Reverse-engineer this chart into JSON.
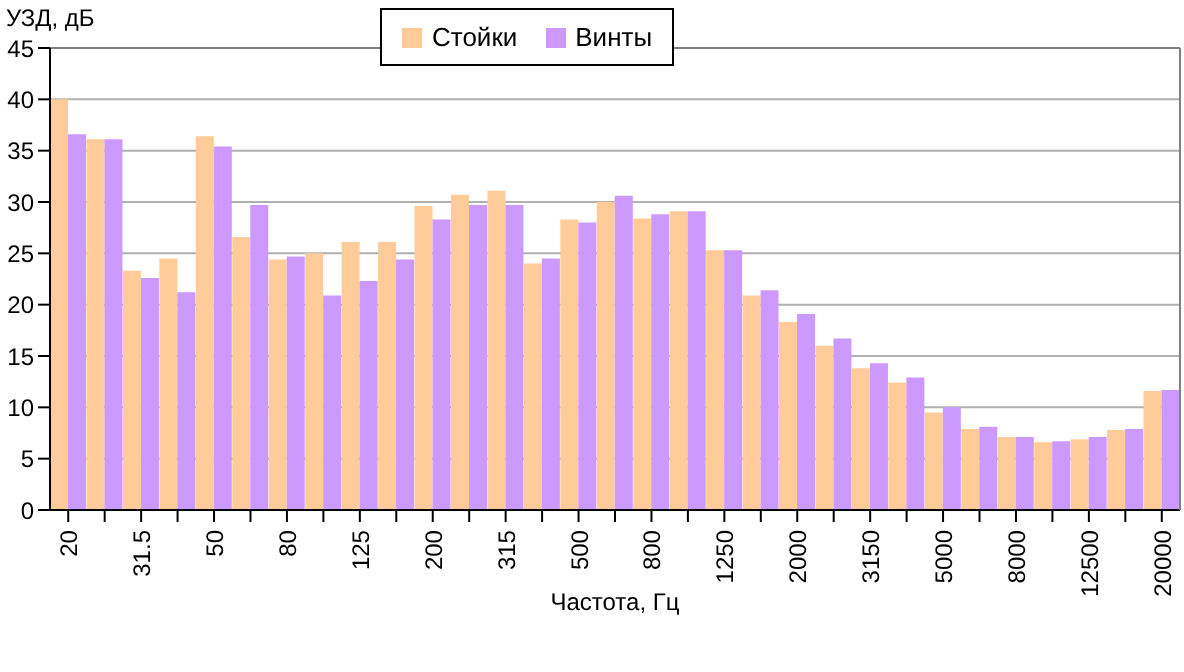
{
  "chart_data": {
    "type": "bar",
    "xlabel": "Частота, Гц",
    "ylabel": "УЗД, дБ",
    "categories": [
      "20",
      null,
      "31.5",
      null,
      "50",
      null,
      "80",
      null,
      "125",
      null,
      "200",
      null,
      "315",
      null,
      "500",
      null,
      "800",
      null,
      "1250",
      null,
      "2000",
      null,
      "3150",
      null,
      "5000",
      null,
      "8000",
      null,
      "12500",
      null,
      "20000"
    ],
    "series": [
      {
        "name": "Стойки",
        "color": "#ffcc99",
        "values": [
          40,
          36.1,
          23.3,
          24.5,
          36.4,
          26.6,
          24.4,
          25.0,
          26.1,
          26.1,
          29.6,
          30.7,
          31.1,
          24.0,
          28.3,
          30.0,
          28.4,
          29.1,
          25.3,
          20.9,
          18.3,
          16.0,
          13.8,
          12.4,
          9.5,
          7.9,
          7.1,
          6.6,
          6.9,
          7.8,
          11.6
        ]
      },
      {
        "name": "Винты",
        "color": "#cc99ff",
        "values": [
          36.6,
          36.1,
          22.6,
          21.2,
          35.4,
          29.7,
          24.7,
          20.9,
          22.3,
          24.4,
          28.3,
          29.7,
          29.7,
          24.5,
          28.0,
          30.6,
          28.8,
          29.1,
          25.3,
          21.4,
          19.1,
          16.7,
          14.3,
          12.9,
          10.0,
          8.1,
          7.1,
          6.7,
          7.1,
          7.9,
          11.7
        ]
      }
    ],
    "ylim": [
      0,
      45
    ],
    "yticks": [
      0,
      5,
      10,
      15,
      20,
      25,
      30,
      35,
      40,
      45
    ],
    "grid": "y",
    "legend": "top"
  }
}
